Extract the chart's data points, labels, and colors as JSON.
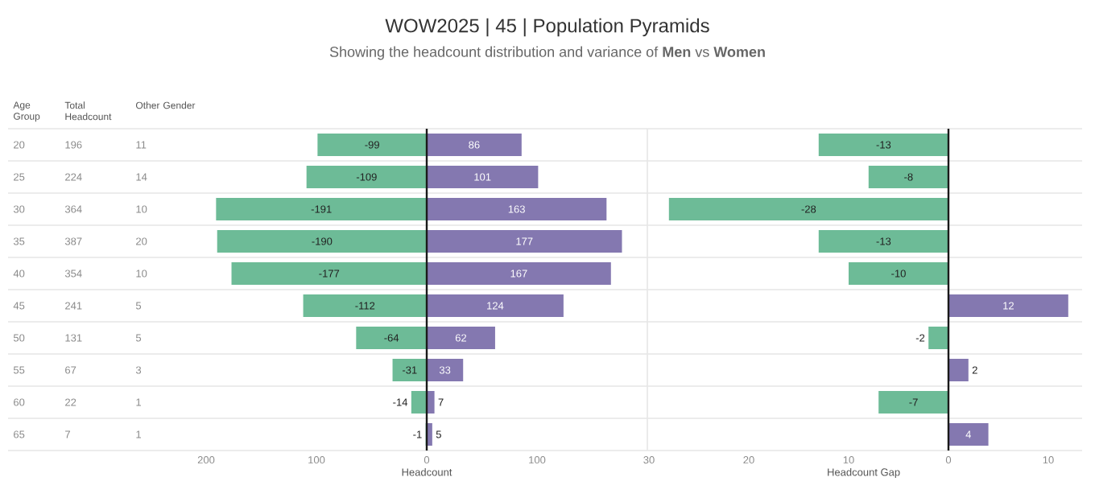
{
  "chart_data": [
    {
      "type": "heatmap",
      "ylabel": "Age Group",
      "data_labels": true,
      "categories": [
        "Total Headcount",
        "Other Gender"
      ],
      "y_categories": [
        "20",
        "25",
        "30",
        "35",
        "40",
        "45",
        "50",
        "55",
        "60",
        "65"
      ],
      "cells": [
        [
          196,
          11
        ],
        [
          224,
          14
        ],
        [
          364,
          10
        ],
        [
          387,
          20
        ],
        [
          354,
          10
        ],
        [
          241,
          5
        ],
        [
          131,
          5
        ],
        [
          67,
          3
        ],
        [
          22,
          1
        ],
        [
          7,
          1
        ]
      ]
    },
    {
      "type": "bar",
      "orientation": "horizontal",
      "title": "WOW2025 | 45 | Population Pyramids",
      "subtitle": "Showing the headcount distribution and variance of **Men** vs **Women**",
      "xlabel": "Headcount",
      "categories": [
        "20",
        "25",
        "30",
        "35",
        "40",
        "45",
        "50",
        "55",
        "60",
        "65"
      ],
      "tick_labels": "x",
      "data_labels": true,
      "stacked": true,
      "xlim": [
        -200,
        200
      ],
      "xticks": [
        {
          "value": -200,
          "label": "200"
        },
        {
          "value": -100,
          "label": "100"
        },
        {
          "value": 0,
          "label": "0"
        },
        {
          "value": 100,
          "label": "100"
        }
      ],
      "ref_lines": [
        {
          "axis": "x",
          "value": 0,
          "color": "#1a1a1a"
        }
      ],
      "series": [
        {
          "color": "#6dbb97",
          "values": [
            -99,
            -109,
            -191,
            -190,
            -177,
            -112,
            -64,
            -31,
            -14,
            -1
          ]
        },
        {
          "color": "#8478b0",
          "values": [
            86,
            101,
            163,
            177,
            167,
            124,
            62,
            33,
            7,
            5
          ]
        }
      ]
    },
    {
      "type": "bar",
      "orientation": "horizontal",
      "xlabel": "Headcount Gap",
      "categories": [
        "20",
        "25",
        "30",
        "35",
        "40",
        "45",
        "50",
        "55",
        "60",
        "65"
      ],
      "tick_labels": "x",
      "data_labels": true,
      "xlim": [
        -30,
        13
      ],
      "xticks": [
        {
          "value": -30,
          "label": "30"
        },
        {
          "value": -20,
          "label": "20"
        },
        {
          "value": -10,
          "label": "10"
        },
        {
          "value": 0,
          "label": "0"
        },
        {
          "value": 10,
          "label": "10"
        }
      ],
      "ref_lines": [
        {
          "axis": "x",
          "value": 0,
          "color": "#1a1a1a"
        }
      ],
      "values": [
        -13,
        -8,
        -28,
        -13,
        -10,
        12,
        -2,
        2,
        -7,
        4
      ],
      "colors": [
        "#6dbb97",
        "#6dbb97",
        "#6dbb97",
        "#6dbb97",
        "#6dbb97",
        "#8478b0",
        "#6dbb97",
        "#8478b0",
        "#6dbb97",
        "#8478b0"
      ]
    }
  ]
}
